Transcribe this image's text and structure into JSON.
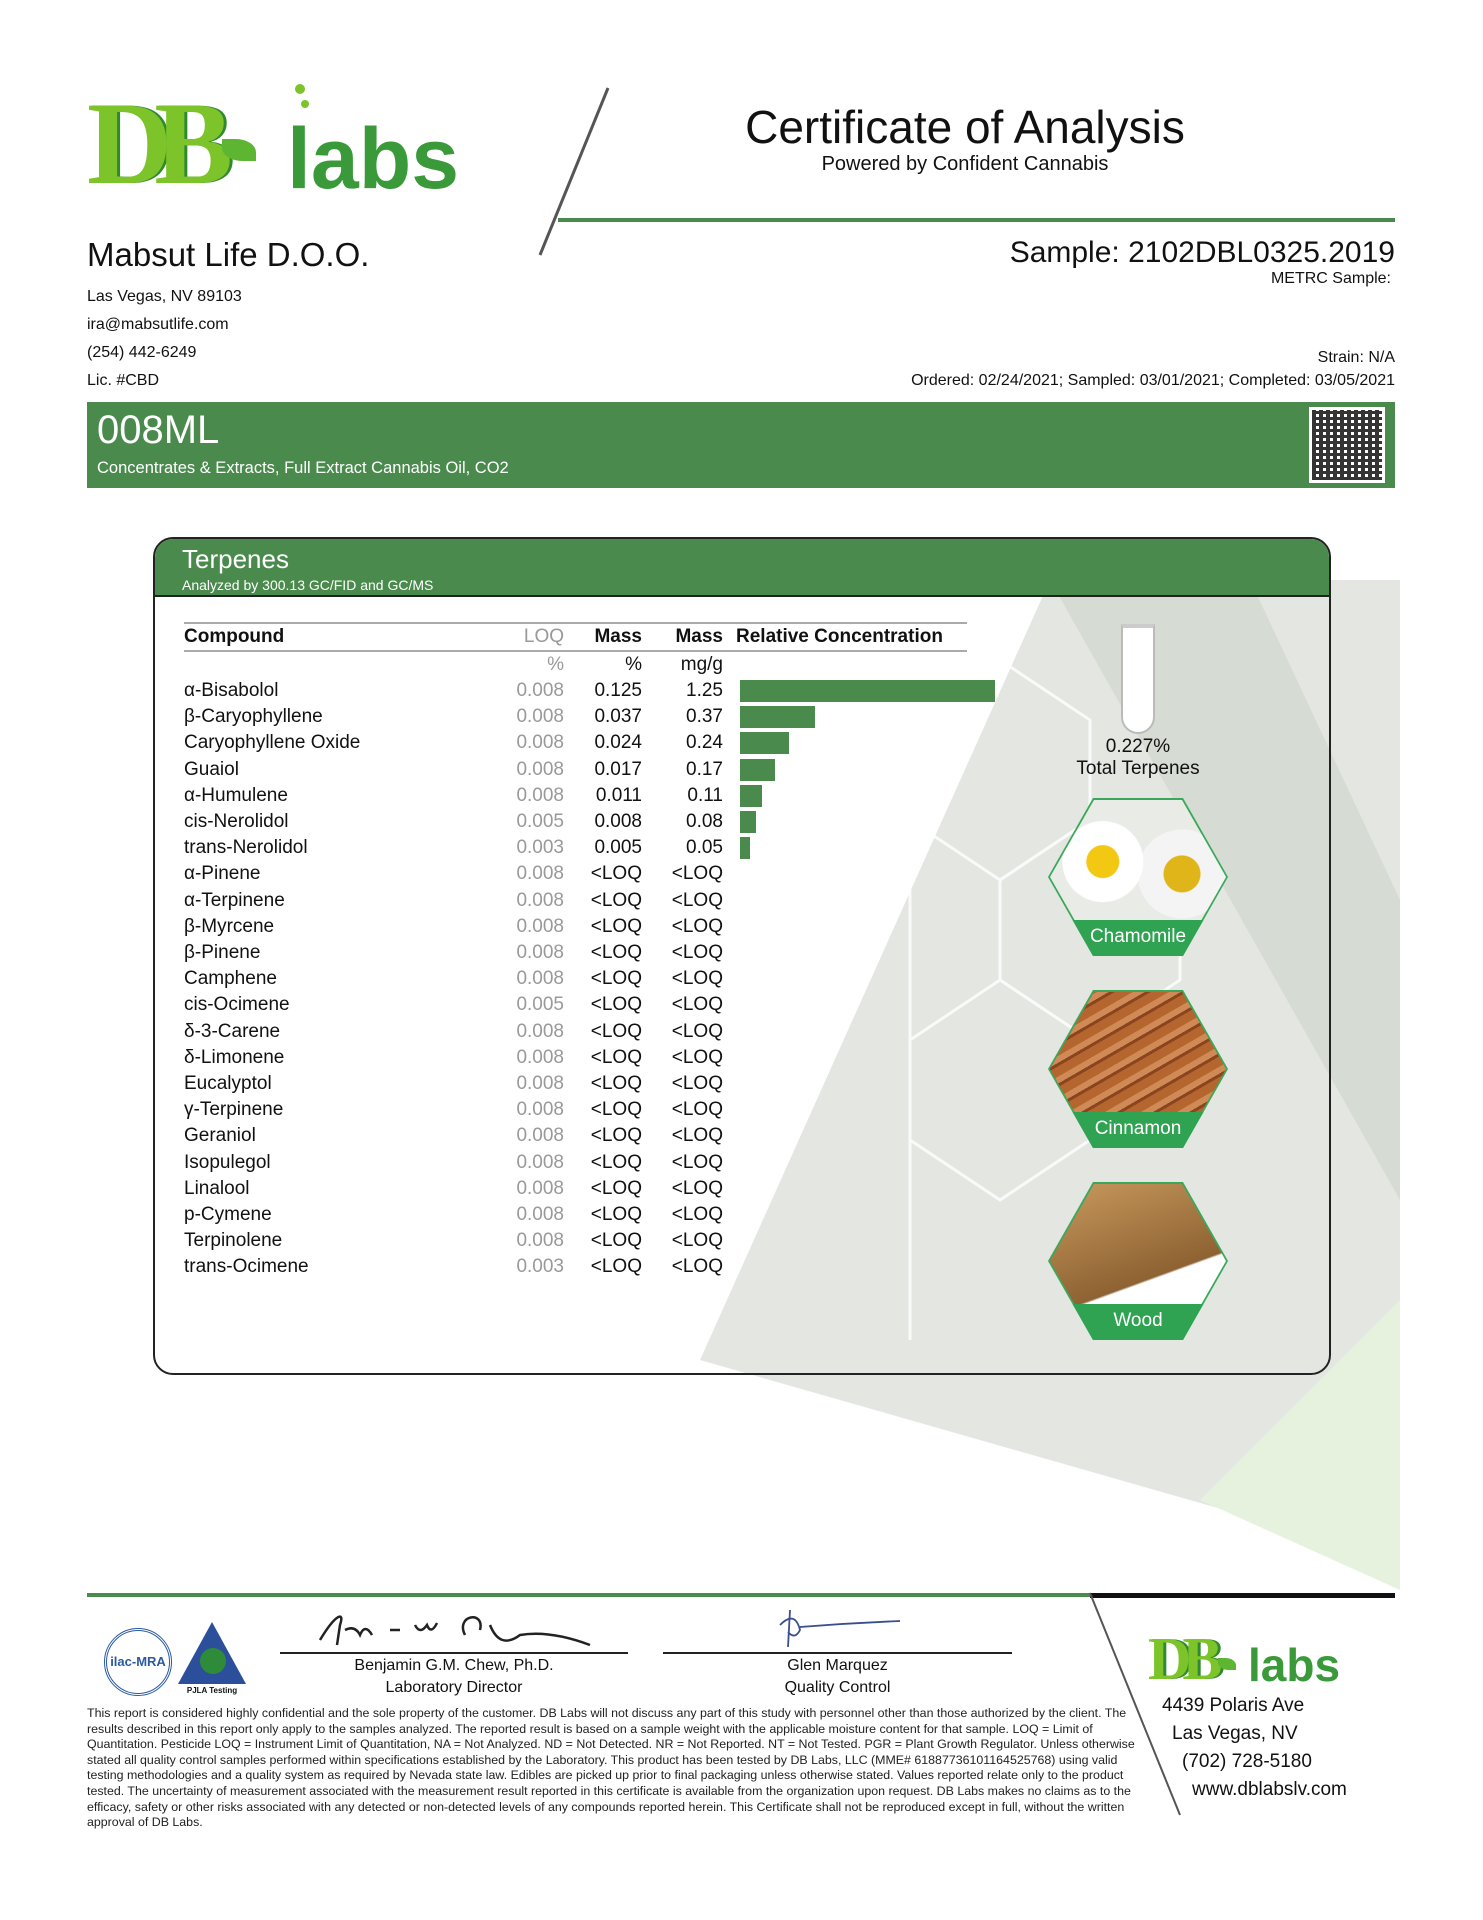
{
  "header": {
    "logo_text": "DB labs",
    "title": "Certificate of Analysis",
    "subtitle": "Powered by Confident Cannabis",
    "client": {
      "name": "Mabsut Life D.O.O.",
      "address": "Las Vegas, NV 89103",
      "email": "ira@mabsutlife.com",
      "phone": "(254) 442-6249",
      "license": "Lic. #CBD"
    },
    "sample": "Sample: 2102DBL0325.2019",
    "metrc": "METRC Sample:",
    "strain": "Strain: N/A",
    "dates": "Ordered: 02/24/2021; Sampled: 03/01/2021; Completed: 03/05/2021"
  },
  "product": {
    "name": "008ML",
    "category": "Concentrates & Extracts, Full Extract Cannabis Oil, CO2",
    "qr_icon": "qr-code"
  },
  "terpenes": {
    "title": "Terpenes",
    "method": "Analyzed by 300.13 GC/FID and GC/MS",
    "columns": {
      "compound": "Compound",
      "loq": "LOQ",
      "mass_pct": "Mass",
      "mass_mg": "Mass",
      "relative": "Relative Concentration"
    },
    "units": {
      "loq": "%",
      "mass_pct": "%",
      "mass_mg": "mg/g"
    },
    "rows": [
      {
        "compound": "α-Bisabolol",
        "loq": "0.008",
        "pct": "0.125",
        "mg": "1.25",
        "bar": 1.25
      },
      {
        "compound": "β-Caryophyllene",
        "loq": "0.008",
        "pct": "0.037",
        "mg": "0.37",
        "bar": 0.37
      },
      {
        "compound": "Caryophyllene Oxide",
        "loq": "0.008",
        "pct": "0.024",
        "mg": "0.24",
        "bar": 0.24
      },
      {
        "compound": "Guaiol",
        "loq": "0.008",
        "pct": "0.017",
        "mg": "0.17",
        "bar": 0.17
      },
      {
        "compound": "α-Humulene",
        "loq": "0.008",
        "pct": "0.011",
        "mg": "0.11",
        "bar": 0.11
      },
      {
        "compound": "cis-Nerolidol",
        "loq": "0.005",
        "pct": "0.008",
        "mg": "0.08",
        "bar": 0.08
      },
      {
        "compound": "trans-Nerolidol",
        "loq": "0.003",
        "pct": "0.005",
        "mg": "0.05",
        "bar": 0.05
      },
      {
        "compound": "α-Pinene",
        "loq": "0.008",
        "pct": "<LOQ",
        "mg": "<LOQ",
        "bar": 0
      },
      {
        "compound": "α-Terpinene",
        "loq": "0.008",
        "pct": "<LOQ",
        "mg": "<LOQ",
        "bar": 0
      },
      {
        "compound": "β-Myrcene",
        "loq": "0.008",
        "pct": "<LOQ",
        "mg": "<LOQ",
        "bar": 0
      },
      {
        "compound": "β-Pinene",
        "loq": "0.008",
        "pct": "<LOQ",
        "mg": "<LOQ",
        "bar": 0
      },
      {
        "compound": "Camphene",
        "loq": "0.008",
        "pct": "<LOQ",
        "mg": "<LOQ",
        "bar": 0
      },
      {
        "compound": "cis-Ocimene",
        "loq": "0.005",
        "pct": "<LOQ",
        "mg": "<LOQ",
        "bar": 0
      },
      {
        "compound": "δ-3-Carene",
        "loq": "0.008",
        "pct": "<LOQ",
        "mg": "<LOQ",
        "bar": 0
      },
      {
        "compound": "δ-Limonene",
        "loq": "0.008",
        "pct": "<LOQ",
        "mg": "<LOQ",
        "bar": 0
      },
      {
        "compound": "Eucalyptol",
        "loq": "0.008",
        "pct": "<LOQ",
        "mg": "<LOQ",
        "bar": 0
      },
      {
        "compound": "γ-Terpinene",
        "loq": "0.008",
        "pct": "<LOQ",
        "mg": "<LOQ",
        "bar": 0
      },
      {
        "compound": "Geraniol",
        "loq": "0.008",
        "pct": "<LOQ",
        "mg": "<LOQ",
        "bar": 0
      },
      {
        "compound": "Isopulegol",
        "loq": "0.008",
        "pct": "<LOQ",
        "mg": "<LOQ",
        "bar": 0
      },
      {
        "compound": "Linalool",
        "loq": "0.008",
        "pct": "<LOQ",
        "mg": "<LOQ",
        "bar": 0
      },
      {
        "compound": "p-Cymene",
        "loq": "0.008",
        "pct": "<LOQ",
        "mg": "<LOQ",
        "bar": 0
      },
      {
        "compound": "Terpinolene",
        "loq": "0.008",
        "pct": "<LOQ",
        "mg": "<LOQ",
        "bar": 0
      },
      {
        "compound": "trans-Ocimene",
        "loq": "0.003",
        "pct": "<LOQ",
        "mg": "<LOQ",
        "bar": 0
      }
    ],
    "total_value": "0.227%",
    "total_label": "Total Terpenes",
    "aromas": [
      "Chamomile",
      "Cinnamon",
      "Wood"
    ],
    "bar_color": "#4a8b4d"
  },
  "footer": {
    "accreditation": [
      "ilac-MRA",
      "PJLA Testing"
    ],
    "signers": [
      {
        "name": "Benjamin G.M. Chew, Ph.D.",
        "title": "Laboratory Director"
      },
      {
        "name": "Glen Marquez",
        "title": "Quality Control"
      }
    ],
    "disclaimer": "This report is considered highly confidential and the sole property of the customer. DB Labs will not discuss any part of this study with personnel other than those authorized by the client. The results described in this report only apply to the samples analyzed. The reported result is based on a sample weight with the applicable moisture content for that sample. LOQ = Limit of Quantitation. Pesticide LOQ = Instrument Limit of Quantitation, NA = Not Analyzed. ND = Not Detected. NR = Not Reported. NT = Not Tested. PGR = Plant Growth Regulator. Unless otherwise stated all quality control samples performed within specifications established by the Laboratory. This product has been tested by DB Labs, LLC (MME# 61887736101164525768) using valid testing methodologies and a quality system as required by Nevada state law. Edibles are picked up prior to final packaging unless otherwise stated. Values reported relate only to the product tested. The uncertainty of measurement associated with the measurement result reported in this certificate is available from the organization upon request. DB Labs makes no claims as to the efficacy, safety or other risks associated with any detected or non-detected levels of any compounds reported herein. This Certificate shall not be reproduced except in full, without the written approval of DB Labs.",
    "lab_address": [
      "4439 Polaris Ave",
      "Las Vegas, NV",
      "(702) 728-5180",
      "www.dblabslv.com"
    ]
  },
  "colors": {
    "brand_green": "#4a8b4d",
    "hex_green": "#2fa352"
  }
}
